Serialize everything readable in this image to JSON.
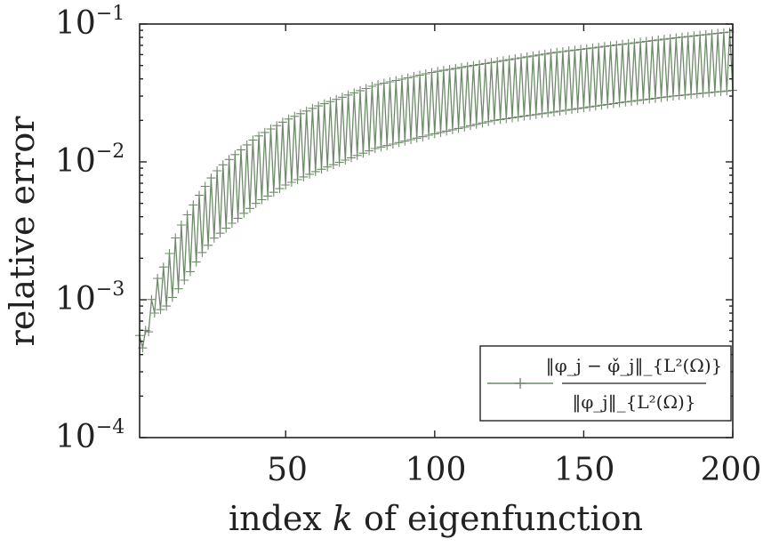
{
  "chart_data": {
    "type": "line",
    "title": "",
    "xlabel_parts": [
      "index ",
      "k",
      " of eigenfunction"
    ],
    "ylabel": "relative error",
    "x_ticks": [
      50,
      100,
      150,
      200
    ],
    "y_ticks": [
      {
        "value": 0.0001,
        "base": "10",
        "exp": "−4"
      },
      {
        "value": 0.001,
        "base": "10",
        "exp": "−3"
      },
      {
        "value": 0.01,
        "base": "10",
        "exp": "−2"
      },
      {
        "value": 0.1,
        "base": "10",
        "exp": "−1"
      }
    ],
    "xlim": [
      1,
      200
    ],
    "ylim": [
      0.0001,
      0.1
    ],
    "yscale": "log",
    "grid": false,
    "legend_position": "bottom-right",
    "marker": "+",
    "series_color": "#6f8a6b",
    "legend": {
      "numerator": "‖φ_j − φ̌_j‖_{L²(Ω)}",
      "denominator": "‖φ_j‖_{L²(Ω)}"
    },
    "series": [
      {
        "name": "‖φ_j − φ̌_j‖_{L²(Ω)} / ‖φ_j‖_{L²(Ω)}",
        "upper_envelope": {
          "x": [
            1,
            3,
            6,
            10,
            14,
            18,
            22,
            26,
            30,
            40,
            50,
            60,
            80,
            100,
            120,
            140,
            160,
            180,
            200
          ],
          "y": [
            0.00055,
            0.0006,
            0.0013,
            0.0019,
            0.0032,
            0.0045,
            0.0062,
            0.0082,
            0.01,
            0.015,
            0.02,
            0.025,
            0.036,
            0.045,
            0.053,
            0.062,
            0.07,
            0.079,
            0.088
          ]
        },
        "lower_envelope": {
          "x": [
            1,
            3,
            6,
            10,
            14,
            18,
            22,
            26,
            30,
            40,
            50,
            60,
            80,
            100,
            120,
            140,
            160,
            180,
            200
          ],
          "y": [
            0.0004,
            0.0005,
            0.0008,
            0.0009,
            0.0012,
            0.0016,
            0.0022,
            0.0028,
            0.0033,
            0.005,
            0.0068,
            0.0085,
            0.0125,
            0.016,
            0.02,
            0.023,
            0.0265,
            0.03,
            0.033
          ]
        },
        "pattern": "alternating: odd k on upper envelope, even k on lower envelope"
      }
    ]
  }
}
